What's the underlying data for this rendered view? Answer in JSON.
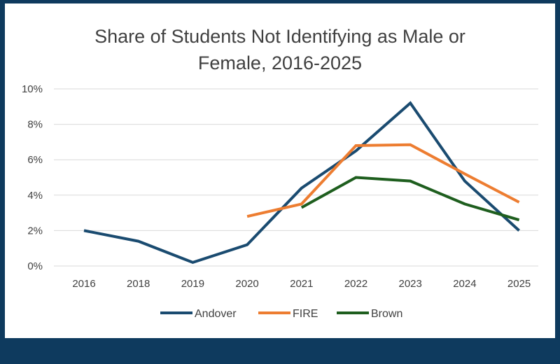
{
  "colors": {
    "background": "#0e3a5e",
    "panel": "#ffffff",
    "grid": "#d9d9d9",
    "text": "#404040"
  },
  "chart_data": {
    "type": "line",
    "title_lines": [
      "Share of Students Not Identifying as Male or",
      "Female, 2016-2025"
    ],
    "categories": [
      "2016",
      "2018",
      "2019",
      "2020",
      "2021",
      "2022",
      "2023",
      "2024",
      "2025"
    ],
    "y_ticks": [
      "0%",
      "2%",
      "4%",
      "6%",
      "8%",
      "10%"
    ],
    "ylim": [
      0,
      10
    ],
    "grid": true,
    "legend_position": "bottom",
    "series": [
      {
        "name": "Andover",
        "color": "#1a4b70",
        "values": [
          2.0,
          1.4,
          0.2,
          1.2,
          4.4,
          6.5,
          9.2,
          4.8,
          2.0
        ]
      },
      {
        "name": "FIRE",
        "color": "#ed7d31",
        "values": [
          null,
          null,
          null,
          2.8,
          3.5,
          6.8,
          6.85,
          5.2,
          3.6
        ]
      },
      {
        "name": "Brown",
        "color": "#1e5e1e",
        "values": [
          null,
          null,
          null,
          null,
          3.3,
          5.0,
          4.8,
          3.5,
          2.6
        ]
      }
    ]
  }
}
